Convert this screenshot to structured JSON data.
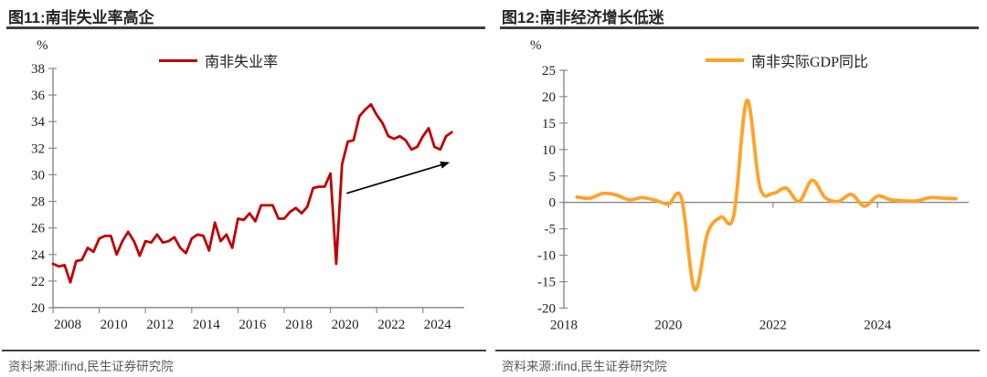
{
  "chart_data": [
    {
      "type": "line",
      "title": "图11:南非失业率高企",
      "ylabel": "%",
      "ylim": [
        20,
        38
      ],
      "ytick_step": 2,
      "xticks": [
        2008,
        2010,
        2012,
        2014,
        2016,
        2018,
        2020,
        2022,
        2024
      ],
      "x_start": 2008.0,
      "x_step": 0.25,
      "grid": false,
      "legend_position": "top-center",
      "zero_line": false,
      "series": [
        {
          "name": "南非失业率",
          "color": "#c00000",
          "smooth": false,
          "width": 2.8,
          "values": [
            23.3,
            23.1,
            23.2,
            21.9,
            23.5,
            23.6,
            24.5,
            24.2,
            25.2,
            25.4,
            25.4,
            24.0,
            25.0,
            25.7,
            25.0,
            23.9,
            25.0,
            24.9,
            25.5,
            24.9,
            25.0,
            25.3,
            24.5,
            24.1,
            25.2,
            25.5,
            25.4,
            24.3,
            26.4,
            25.0,
            25.5,
            24.5,
            26.7,
            26.6,
            27.1,
            26.5,
            27.7,
            27.7,
            27.7,
            26.7,
            26.7,
            27.2,
            27.5,
            27.1,
            27.6,
            29.0,
            29.1,
            29.1,
            30.1,
            23.3,
            30.8,
            32.5,
            32.6,
            34.4,
            34.9,
            35.3,
            34.5,
            33.9,
            32.9,
            32.7,
            32.9,
            32.6,
            31.9,
            32.1,
            32.9,
            33.5,
            32.1,
            31.9,
            32.9,
            33.2
          ]
        }
      ],
      "annotation_arrow": {
        "x1": 2020.7,
        "y1": 28.6,
        "x2": 2025.1,
        "y2": 30.9,
        "color": "#000000"
      }
    },
    {
      "type": "line",
      "title": "图12:南非经济增长低迷",
      "ylabel": "%",
      "ylim": [
        -20,
        25
      ],
      "ytick_step": 5,
      "xticks": [
        2018,
        2020,
        2022,
        2024
      ],
      "x_start": 2018.25,
      "x_step": 0.25,
      "grid": false,
      "legend_position": "top-center",
      "zero_line": true,
      "series": [
        {
          "name": "南非实际GDP同比",
          "color": "#ffa329",
          "smooth": true,
          "width": 3.8,
          "values": [
            1.0,
            0.8,
            1.7,
            1.4,
            0.5,
            0.9,
            0.4,
            -0.3,
            0.8,
            -16.5,
            -5.8,
            -2.8,
            -2.5,
            19.3,
            2.9,
            1.7,
            2.7,
            0.2,
            4.2,
            0.9,
            0.2,
            1.5,
            -0.7,
            1.2,
            0.5,
            0.3,
            0.3,
            0.9,
            0.8,
            0.7
          ]
        }
      ]
    }
  ],
  "panels": [
    {
      "source": "资料来源:ifind,民生证券研究院"
    },
    {
      "source": "资料来源:ifind,民生证券研究院"
    }
  ],
  "colors": {
    "unemployment_line": "#c00000",
    "gdp_line": "#ffa329",
    "axis": "#898989",
    "title_text": "#262626",
    "source_text": "#595959",
    "rule": "#3d3d3d"
  }
}
